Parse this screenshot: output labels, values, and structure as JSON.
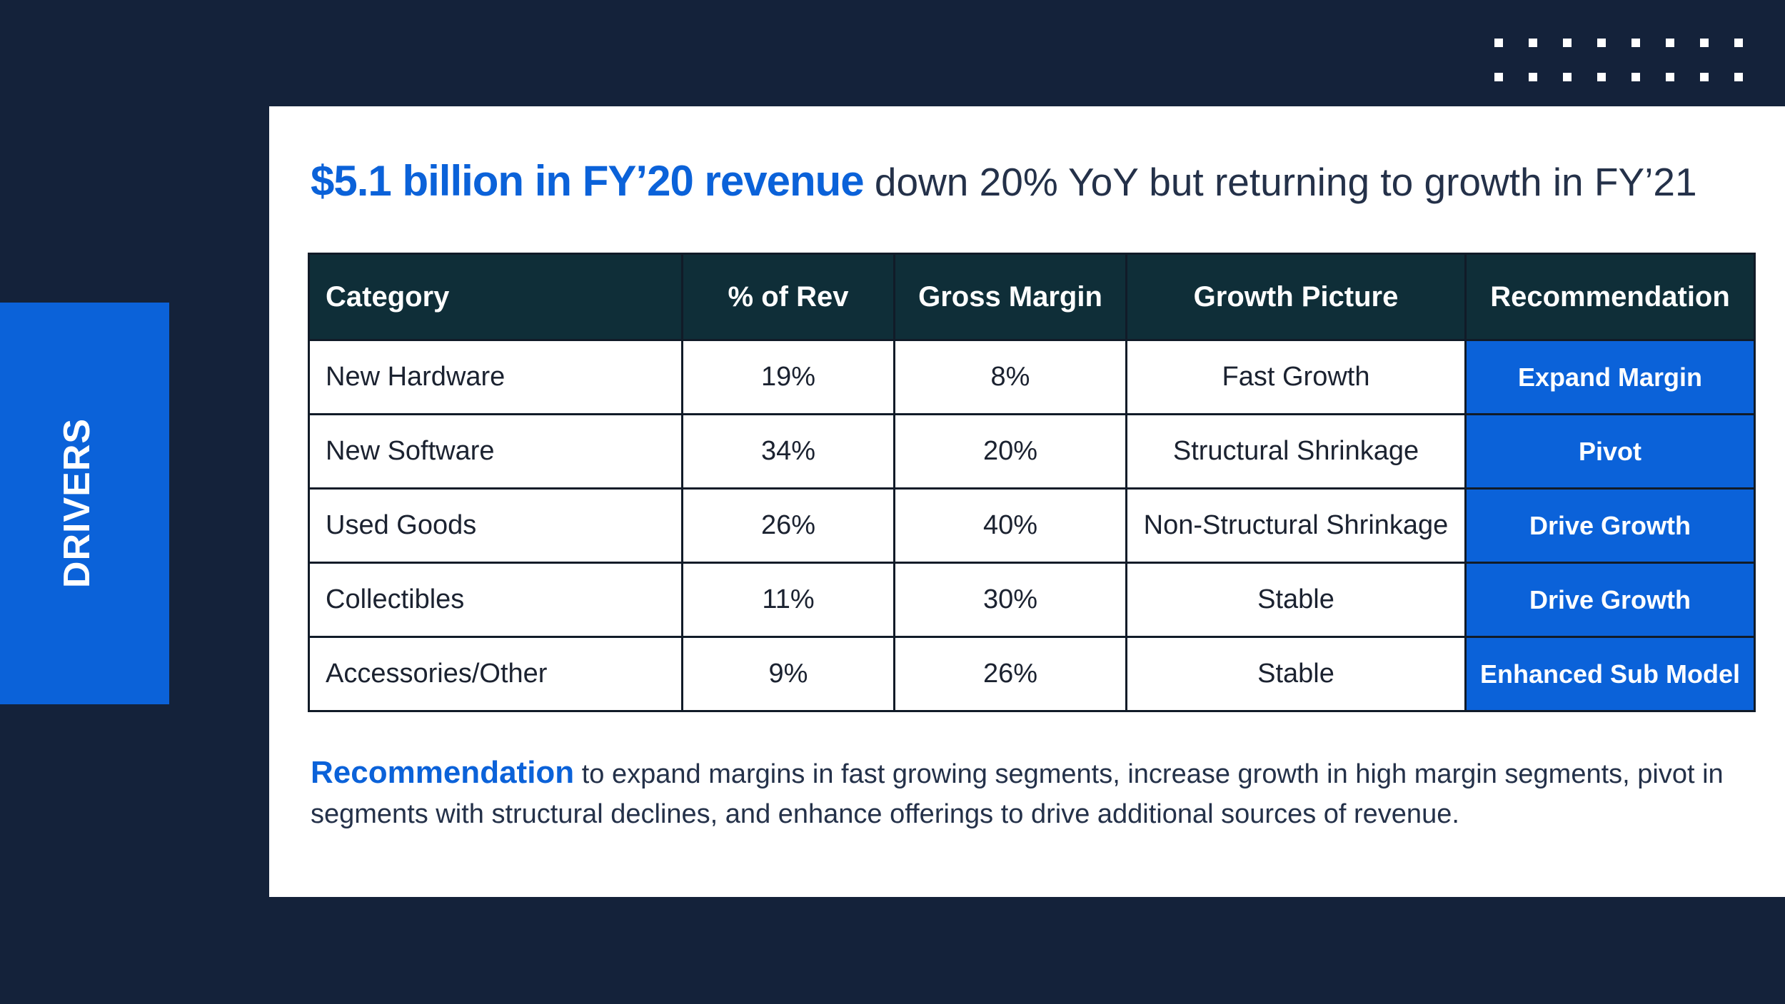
{
  "side_tab": {
    "label": "DRIVERS"
  },
  "headline": {
    "strong": "$5.1 billion in FY’20 revenue",
    "light": " down 20% YoY but returning to growth in FY’21"
  },
  "table": {
    "headers": [
      "Category",
      "% of Rev",
      "Gross Margin",
      "Growth Picture",
      "Recommendation"
    ],
    "rows": [
      [
        "New Hardware",
        "19%",
        "8%",
        "Fast Growth",
        "Expand Margin"
      ],
      [
        "New Software",
        "34%",
        "20%",
        "Structural Shrinkage",
        "Pivot"
      ],
      [
        "Used Goods",
        "26%",
        "40%",
        "Non-Structural Shrinkage",
        "Drive Growth"
      ],
      [
        "Collectibles",
        "11%",
        "30%",
        "Stable",
        "Drive Growth"
      ],
      [
        "Accessories/Other",
        "9%",
        "26%",
        "Stable",
        "Enhanced Sub Model"
      ]
    ]
  },
  "recommendation": {
    "strong": "Recommendation",
    "text": " to expand margins in fast growing segments, increase growth in high margin segments, pivot in segments with structural declines, and enhance offerings to drive additional sources of revenue."
  },
  "colors": {
    "background": "#14223a",
    "accent": "#0b62d9",
    "table_header": "#0f2e38",
    "card": "#ffffff"
  }
}
